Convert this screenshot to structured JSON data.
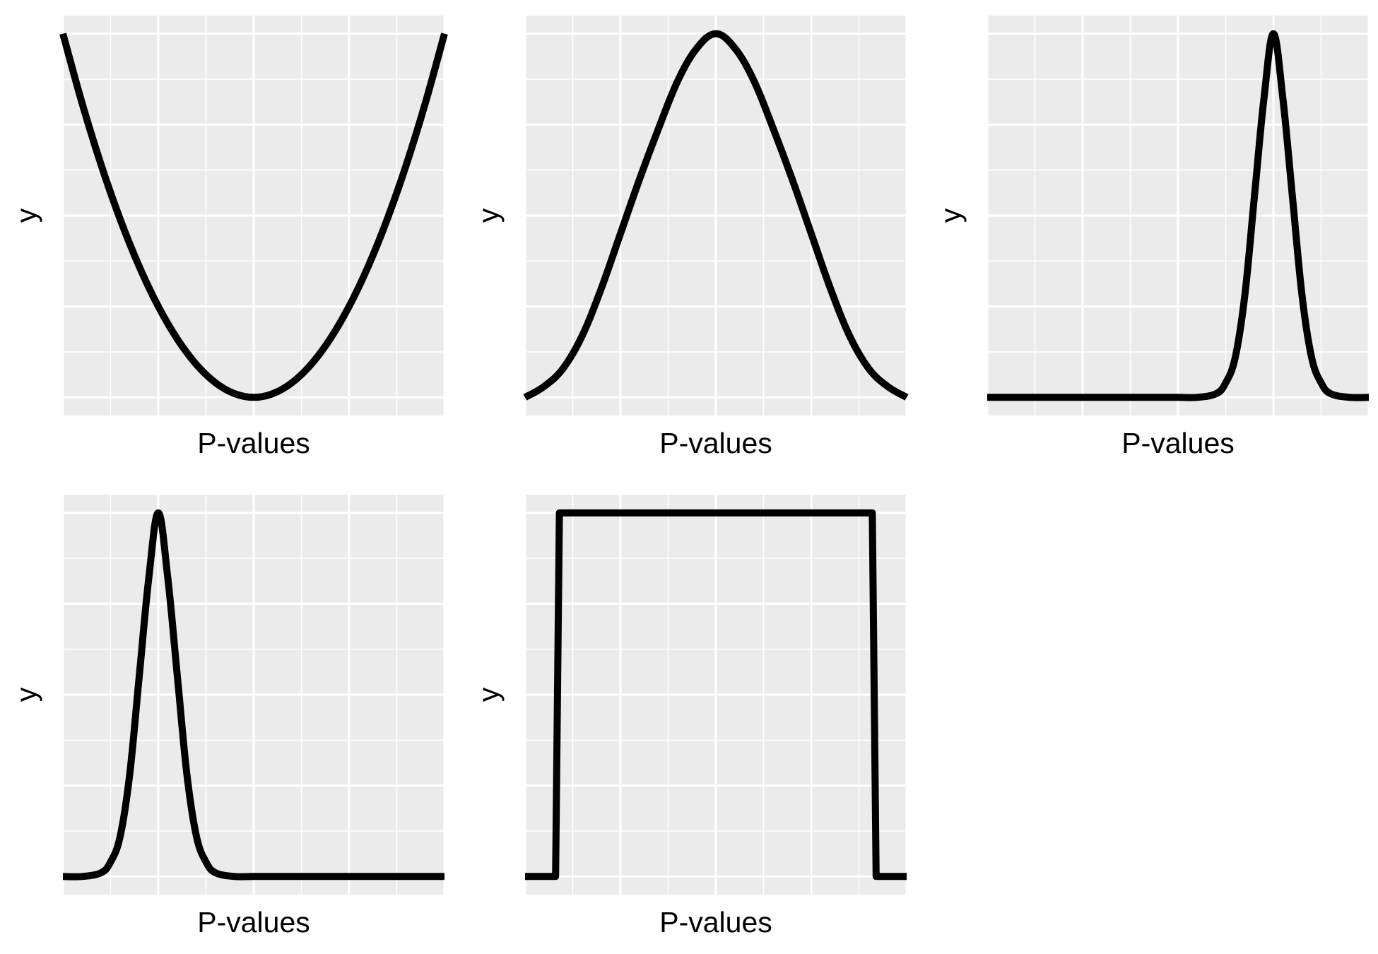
{
  "chart_data": [
    {
      "type": "line",
      "xlabel": "P-values",
      "ylabel": "y",
      "xlim": [
        -1.0,
        1.0
      ],
      "ylim": [
        -0.05,
        1.05
      ],
      "x": [
        -1.0,
        -0.9,
        -0.8,
        -0.7,
        -0.6,
        -0.5,
        -0.4,
        -0.3,
        -0.2,
        -0.1,
        0.0,
        0.1,
        0.2,
        0.3,
        0.4,
        0.5,
        0.6,
        0.7,
        0.8,
        0.9,
        1.0
      ],
      "y": [
        1.0,
        0.81,
        0.64,
        0.49,
        0.36,
        0.25,
        0.16,
        0.09,
        0.04,
        0.01,
        0.0,
        0.01,
        0.04,
        0.09,
        0.16,
        0.25,
        0.36,
        0.49,
        0.64,
        0.81,
        1.0
      ]
    },
    {
      "type": "line",
      "xlabel": "P-values",
      "ylabel": "y",
      "xlim": [
        -1.0,
        1.0
      ],
      "ylim": [
        -0.05,
        1.05
      ],
      "x": [
        -1.0,
        -0.9,
        -0.8,
        -0.7,
        -0.6,
        -0.5,
        -0.4,
        -0.3,
        -0.2,
        -0.1,
        0.0,
        0.1,
        0.2,
        0.3,
        0.4,
        0.5,
        0.6,
        0.7,
        0.8,
        0.9,
        1.0
      ],
      "y": [
        0.0,
        0.03,
        0.08,
        0.17,
        0.3,
        0.45,
        0.6,
        0.74,
        0.87,
        0.96,
        1.0,
        0.96,
        0.87,
        0.74,
        0.6,
        0.45,
        0.3,
        0.17,
        0.08,
        0.03,
        0.0
      ]
    },
    {
      "type": "line",
      "xlabel": "P-values",
      "ylabel": "y",
      "xlim": [
        -1.0,
        1.0
      ],
      "ylim": [
        -0.05,
        1.05
      ],
      "x": [
        -1.0,
        -0.8,
        -0.6,
        -0.4,
        -0.2,
        -0.1,
        0.0,
        0.1,
        0.2,
        0.25,
        0.3,
        0.35,
        0.4,
        0.45,
        0.5,
        0.55,
        0.6,
        0.65,
        0.7,
        0.75,
        0.8,
        0.9,
        1.0
      ],
      "y": [
        0.0,
        0.0,
        0.0,
        0.0,
        0.0,
        0.0,
        0.0,
        0.0,
        0.01,
        0.04,
        0.11,
        0.28,
        0.55,
        0.82,
        1.0,
        0.82,
        0.55,
        0.28,
        0.11,
        0.04,
        0.01,
        0.0,
        0.0
      ]
    },
    {
      "type": "line",
      "xlabel": "P-values",
      "ylabel": "y",
      "xlim": [
        -1.0,
        1.0
      ],
      "ylim": [
        -0.05,
        1.05
      ],
      "x": [
        -1.0,
        -0.9,
        -0.8,
        -0.75,
        -0.7,
        -0.65,
        -0.6,
        -0.55,
        -0.5,
        -0.45,
        -0.4,
        -0.35,
        -0.3,
        -0.25,
        -0.2,
        -0.1,
        0.0,
        0.2,
        0.4,
        0.6,
        0.8,
        1.0
      ],
      "y": [
        0.0,
        0.0,
        0.01,
        0.04,
        0.11,
        0.28,
        0.55,
        0.82,
        1.0,
        0.82,
        0.55,
        0.28,
        0.11,
        0.04,
        0.01,
        0.0,
        0.0,
        0.0,
        0.0,
        0.0,
        0.0,
        0.0
      ]
    },
    {
      "type": "line",
      "xlabel": "P-values",
      "ylabel": "y",
      "xlim": [
        -1.0,
        1.0
      ],
      "ylim": [
        -0.05,
        1.05
      ],
      "x": [
        -1.0,
        -0.84,
        -0.82,
        0.82,
        0.84,
        1.0
      ],
      "y": [
        0.0,
        0.0,
        1.0,
        1.0,
        0.0,
        0.0
      ]
    }
  ]
}
